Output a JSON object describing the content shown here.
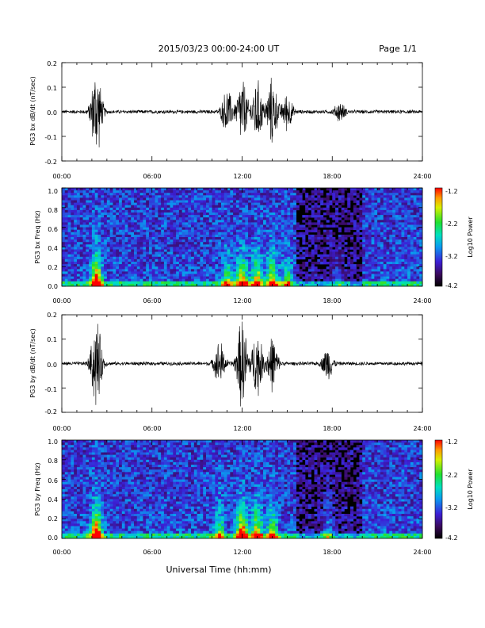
{
  "header": {
    "title": "2015/03/23  00:00-24:00 UT",
    "page": "Page 1/1"
  },
  "x_axis": {
    "ticks": [
      "00:00",
      "06:00",
      "12:00",
      "18:00",
      "24:00"
    ],
    "xlabel": "Universal Time (hh:mm)"
  },
  "chart_data": [
    {
      "type": "line",
      "ylabel": "PG3 bx dB/dt (nT/sec)",
      "xlim": [
        0,
        24
      ],
      "ylim": [
        -0.2,
        0.2
      ],
      "yticks": [
        "0.2",
        "0.1",
        "0.0",
        "-0.1",
        "-0.2"
      ],
      "activity_bursts": [
        {
          "x": 2.3,
          "amp": 0.2
        },
        {
          "x": 11.0,
          "amp": 0.1
        },
        {
          "x": 12.0,
          "amp": 0.15
        },
        {
          "x": 13.0,
          "amp": 0.14
        },
        {
          "x": 14.0,
          "amp": 0.15
        },
        {
          "x": 15.0,
          "amp": 0.08
        },
        {
          "x": 18.5,
          "amp": 0.04
        }
      ]
    },
    {
      "type": "heatmap",
      "ylabel": "PG3 bx Freq (Hz)",
      "xlim": [
        0,
        24
      ],
      "ylim": [
        0,
        1.0
      ],
      "yticks": [
        "1.0",
        "0.8",
        "0.6",
        "0.4",
        "0.2",
        "0.0"
      ],
      "colorbar": {
        "label": "Log10 Power",
        "ticks": [
          "-1.2",
          "-2.2",
          "-3.2",
          "-4.2"
        ],
        "range": [
          -4.2,
          -1.2
        ]
      }
    },
    {
      "type": "line",
      "ylabel": "PG3 by dB/dt (nT/sec)",
      "xlim": [
        0,
        24
      ],
      "ylim": [
        -0.2,
        0.2
      ],
      "yticks": [
        "0.2",
        "0.1",
        "0.0",
        "-0.1",
        "-0.2"
      ],
      "activity_bursts": [
        {
          "x": 2.3,
          "amp": 0.2
        },
        {
          "x": 10.5,
          "amp": 0.1
        },
        {
          "x": 12.0,
          "amp": 0.2
        },
        {
          "x": 13.0,
          "amp": 0.15
        },
        {
          "x": 14.0,
          "amp": 0.12
        },
        {
          "x": 17.7,
          "amp": 0.07
        }
      ]
    },
    {
      "type": "heatmap",
      "ylabel": "PG3 by Freq (Hz)",
      "xlim": [
        0,
        24
      ],
      "ylim": [
        0,
        1.0
      ],
      "yticks": [
        "1.0",
        "0.8",
        "0.6",
        "0.4",
        "0.2",
        "0.0"
      ],
      "colorbar": {
        "label": "Log10 Power",
        "ticks": [
          "-1.2",
          "-2.2",
          "-3.2",
          "-4.2"
        ],
        "range": [
          -4.2,
          -1.2
        ]
      }
    }
  ]
}
